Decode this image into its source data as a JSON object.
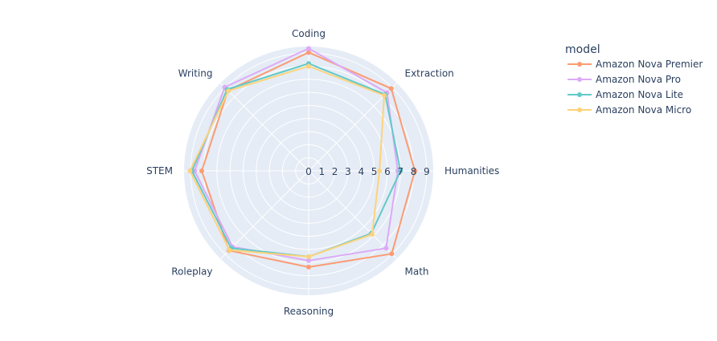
{
  "chart_data": {
    "type": "radar",
    "categories": [
      "Coding",
      "Extraction",
      "Humanities",
      "Math",
      "Reasoning",
      "Roleplay",
      "STEM",
      "Writing"
    ],
    "radial_ticks": [
      "0",
      "1",
      "2",
      "3",
      "4",
      "5",
      "6",
      "7",
      "8",
      "9"
    ],
    "r_range": [
      0,
      9.5
    ],
    "grid": true,
    "legend_title": "model",
    "legend_position": "top-right",
    "series": [
      {
        "name": "Amazon Nova Premier",
        "color": "#fc9b72",
        "values": [
          9.05,
          8.9,
          8.1,
          8.95,
          7.35,
          8.6,
          8.15,
          8.7
        ]
      },
      {
        "name": "Amazon Nova Pro",
        "color": "#dcaaf7",
        "values": [
          9.35,
          8.45,
          6.8,
          8.35,
          6.85,
          8.2,
          8.7,
          9.05
        ]
      },
      {
        "name": "Amazon Nova Lite",
        "color": "#63c9c8",
        "values": [
          8.2,
          8.25,
          7.0,
          6.75,
          6.55,
          8.35,
          8.9,
          8.8
        ]
      },
      {
        "name": "Amazon Nova Micro",
        "color": "#fdd37a",
        "values": [
          8.0,
          8.15,
          5.4,
          6.85,
          6.55,
          8.55,
          9.05,
          8.65
        ]
      }
    ]
  }
}
